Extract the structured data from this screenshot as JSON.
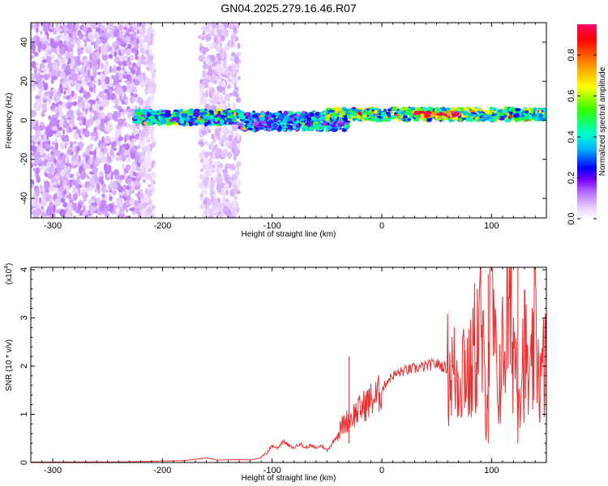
{
  "page": {
    "title": "GN04.2025.279.16.46.R07"
  },
  "chart_data": [
    {
      "type": "heatmap",
      "name": "spectrogram",
      "xlabel": "Height of straight line (km)",
      "ylabel": "Frequency (Hz)",
      "xlim": [
        -320,
        150
      ],
      "ylim": [
        -50,
        50
      ],
      "xticks": [
        -300,
        -200,
        -100,
        0,
        100
      ],
      "yticks": [
        -40,
        -20,
        0,
        20,
        40
      ],
      "colorbar": {
        "label": "Normalized spectral amplitude",
        "range": [
          0.0,
          0.95
        ],
        "ticks": [
          0.0,
          0.2,
          0.4,
          0.6,
          0.8
        ],
        "tick_labels": [
          "0.0",
          "0.2",
          "0.4",
          "0.6",
          "0.8"
        ],
        "colormap": [
          "#ffffff",
          "#e6ccff",
          "#b266ff",
          "#7a00ff",
          "#0000ff",
          "#00b7ff",
          "#00ffc8",
          "#33ff00",
          "#ffff00",
          "#ff8800",
          "#ff0000",
          "#ff0066"
        ]
      },
      "regions": [
        {
          "name": "noise",
          "x": [
            -320,
            -220
          ],
          "y": [
            -50,
            50
          ],
          "level": 0.08
        },
        {
          "name": "noise",
          "x": [
            -220,
            -208
          ],
          "y": [
            -50,
            50
          ],
          "level": 0.05
        },
        {
          "name": "noise",
          "x": [
            -165,
            -130
          ],
          "y": [
            -50,
            50
          ],
          "level": 0.06
        },
        {
          "name": "signal",
          "x": [
            -225,
            -130
          ],
          "y": [
            -2,
            5
          ],
          "level": 0.35
        },
        {
          "name": "signal",
          "x": [
            -130,
            -30
          ],
          "y": [
            -5,
            4
          ],
          "level": 0.3
        },
        {
          "name": "signal",
          "x": [
            -50,
            150
          ],
          "y": [
            0,
            6
          ],
          "level": 0.45
        },
        {
          "name": "peak",
          "x": [
            30,
            70
          ],
          "y": [
            2,
            4
          ],
          "level": 0.9
        }
      ]
    },
    {
      "type": "line",
      "name": "snr",
      "xlabel": "Height of straight line (km)",
      "ylabel": "SNR (10 * v/v)",
      "ylabel_multiplier": "(x10",
      "ylabel_multiplier_exp": "4",
      "ylabel_multiplier_close": ")",
      "xlim": [
        -320,
        150
      ],
      "ylim": [
        0,
        4.05
      ],
      "xticks": [
        -300,
        -200,
        -100,
        0,
        100
      ],
      "yticks": [
        0,
        1,
        2,
        3,
        4
      ],
      "series": [
        {
          "name": "SNR",
          "color": "#e83030",
          "x": [
            -320,
            -300,
            -280,
            -260,
            -240,
            -220,
            -200,
            -180,
            -165,
            -160,
            -150,
            -130,
            -120,
            -110,
            -105,
            -100,
            -95,
            -90,
            -85,
            -80,
            -75,
            -70,
            -65,
            -60,
            -55,
            -50,
            -45,
            -40,
            -35,
            -30,
            -25,
            -20,
            -15,
            -10,
            -5,
            0,
            5,
            10,
            20,
            30,
            40,
            50,
            60,
            65,
            70,
            75,
            80,
            85,
            90,
            95,
            100,
            105,
            110,
            115,
            120,
            125,
            130,
            135,
            140,
            145,
            150
          ],
          "values": [
            0.01,
            0.01,
            0.01,
            0.01,
            0.01,
            0.02,
            0.03,
            0.04,
            0.08,
            0.1,
            0.05,
            0.06,
            0.05,
            0.1,
            0.2,
            0.35,
            0.3,
            0.45,
            0.35,
            0.3,
            0.4,
            0.3,
            0.35,
            0.3,
            0.35,
            0.25,
            0.4,
            0.6,
            0.8,
            0.9,
            1.0,
            1.1,
            1.2,
            1.3,
            1.35,
            1.5,
            1.7,
            1.8,
            1.9,
            1.95,
            2.0,
            2.05,
            1.95,
            1.85,
            1.8,
            2.2,
            1.7,
            2.4,
            2.8,
            1.2,
            3.5,
            1.5,
            2.2,
            3.0,
            2.6,
            1.6,
            2.4,
            1.4,
            2.8,
            1.6,
            2.3
          ]
        }
      ],
      "spike_peaks": [
        {
          "x": -30,
          "value": 2.2
        },
        {
          "x": 97,
          "value": 3.9
        },
        {
          "x": 124,
          "value": 4.05
        }
      ]
    }
  ]
}
